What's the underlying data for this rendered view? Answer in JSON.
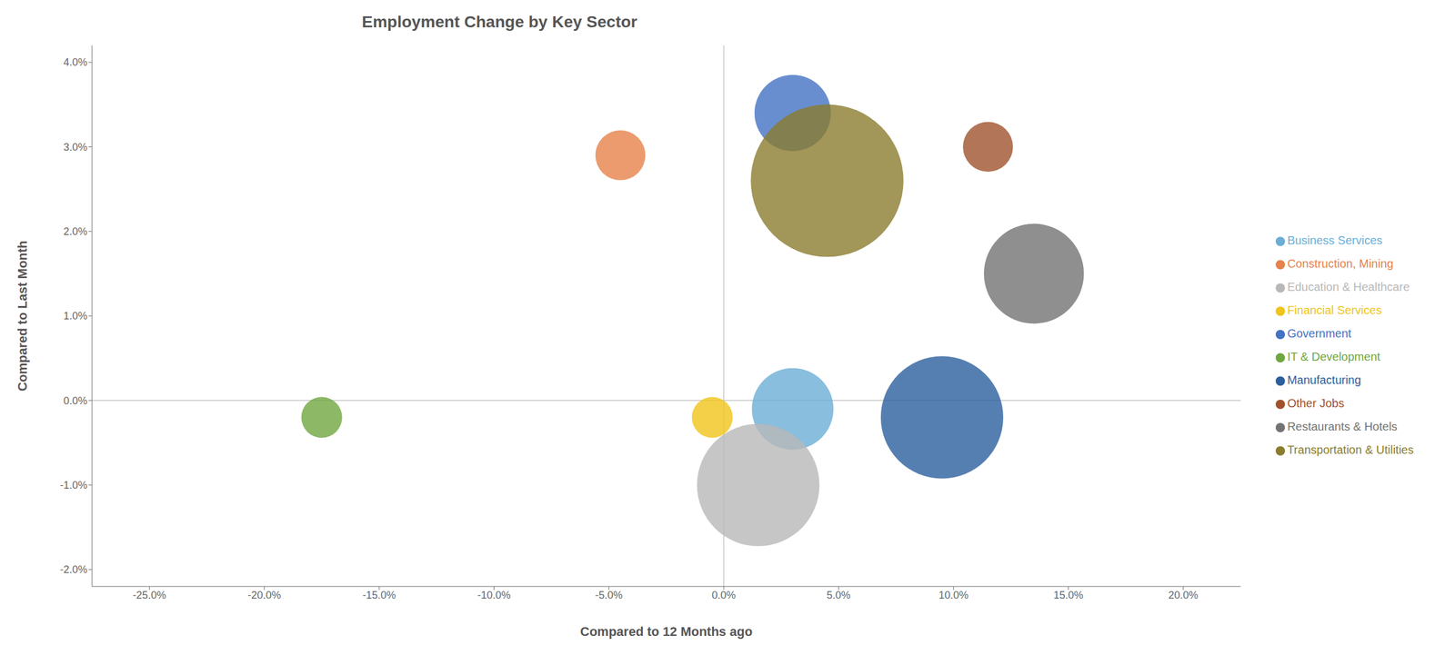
{
  "chart_data": {
    "type": "scatter",
    "title": "Employment Change by Key Sector",
    "xlabel": "Compared to 12 Months ago",
    "ylabel": "Compared to Last Month",
    "xlim": [
      -0.275,
      0.225
    ],
    "ylim": [
      -0.022,
      0.042
    ],
    "xticks": [
      {
        "value": -0.25,
        "label": "-25.0%"
      },
      {
        "value": -0.2,
        "label": "-20.0%"
      },
      {
        "value": -0.15,
        "label": "-15.0%"
      },
      {
        "value": -0.1,
        "label": "-10.0%"
      },
      {
        "value": -0.05,
        "label": "-5.0%"
      },
      {
        "value": 0,
        "label": "0.0%"
      },
      {
        "value": 0.05,
        "label": "5.0%"
      },
      {
        "value": 0.1,
        "label": "10.0%"
      },
      {
        "value": 0.15,
        "label": "15.0%"
      },
      {
        "value": 0.2,
        "label": "20.0%"
      }
    ],
    "yticks": [
      {
        "value": -0.02,
        "label": "-2.0%"
      },
      {
        "value": -0.01,
        "label": "-1.0%"
      },
      {
        "value": 0,
        "label": "0.0%"
      },
      {
        "value": 0.01,
        "label": "1.0%"
      },
      {
        "value": 0.02,
        "label": "2.0%"
      },
      {
        "value": 0.03,
        "label": "3.0%"
      },
      {
        "value": 0.04,
        "label": "4.0%"
      }
    ],
    "grid": false,
    "legend": "right",
    "marker": "circle",
    "series": [
      {
        "name": "Business Services",
        "color": "#6baed6",
        "x": [
          0.03
        ],
        "y": [
          -0.001
        ],
        "size": [
          8000
        ]
      },
      {
        "name": "Construction, Mining",
        "color": "#e6824a",
        "x": [
          -0.045
        ],
        "y": [
          0.029
        ],
        "size": [
          3000
        ]
      },
      {
        "name": "Education & Healthcare",
        "color": "#b8b8b8",
        "x": [
          0.015
        ],
        "y": [
          -0.01
        ],
        "size": [
          18000
        ]
      },
      {
        "name": "Financial Services",
        "color": "#f0c419",
        "x": [
          -0.005
        ],
        "y": [
          -0.002
        ],
        "size": [
          2000
        ]
      },
      {
        "name": "Government",
        "color": "#4472c4",
        "x": [
          0.03
        ],
        "y": [
          0.034
        ],
        "size": [
          7000
        ]
      },
      {
        "name": "IT & Development",
        "color": "#70a640",
        "x": [
          -0.175
        ],
        "y": [
          -0.002
        ],
        "size": [
          2000
        ]
      },
      {
        "name": "Manufacturing",
        "color": "#2c5f9e",
        "x": [
          0.095
        ],
        "y": [
          -0.002
        ],
        "size": [
          18000
        ]
      },
      {
        "name": "Other Jobs",
        "color": "#a0522d",
        "x": [
          0.115
        ],
        "y": [
          0.03
        ],
        "size": [
          3000
        ]
      },
      {
        "name": "Restaurants & Hotels",
        "color": "#737373",
        "x": [
          0.135
        ],
        "y": [
          0.015
        ],
        "size": [
          12000
        ]
      },
      {
        "name": "Transportation & Utilities",
        "color": "#8b7c2e",
        "x": [
          0.045
        ],
        "y": [
          0.026
        ],
        "size": [
          28000
        ]
      }
    ]
  }
}
